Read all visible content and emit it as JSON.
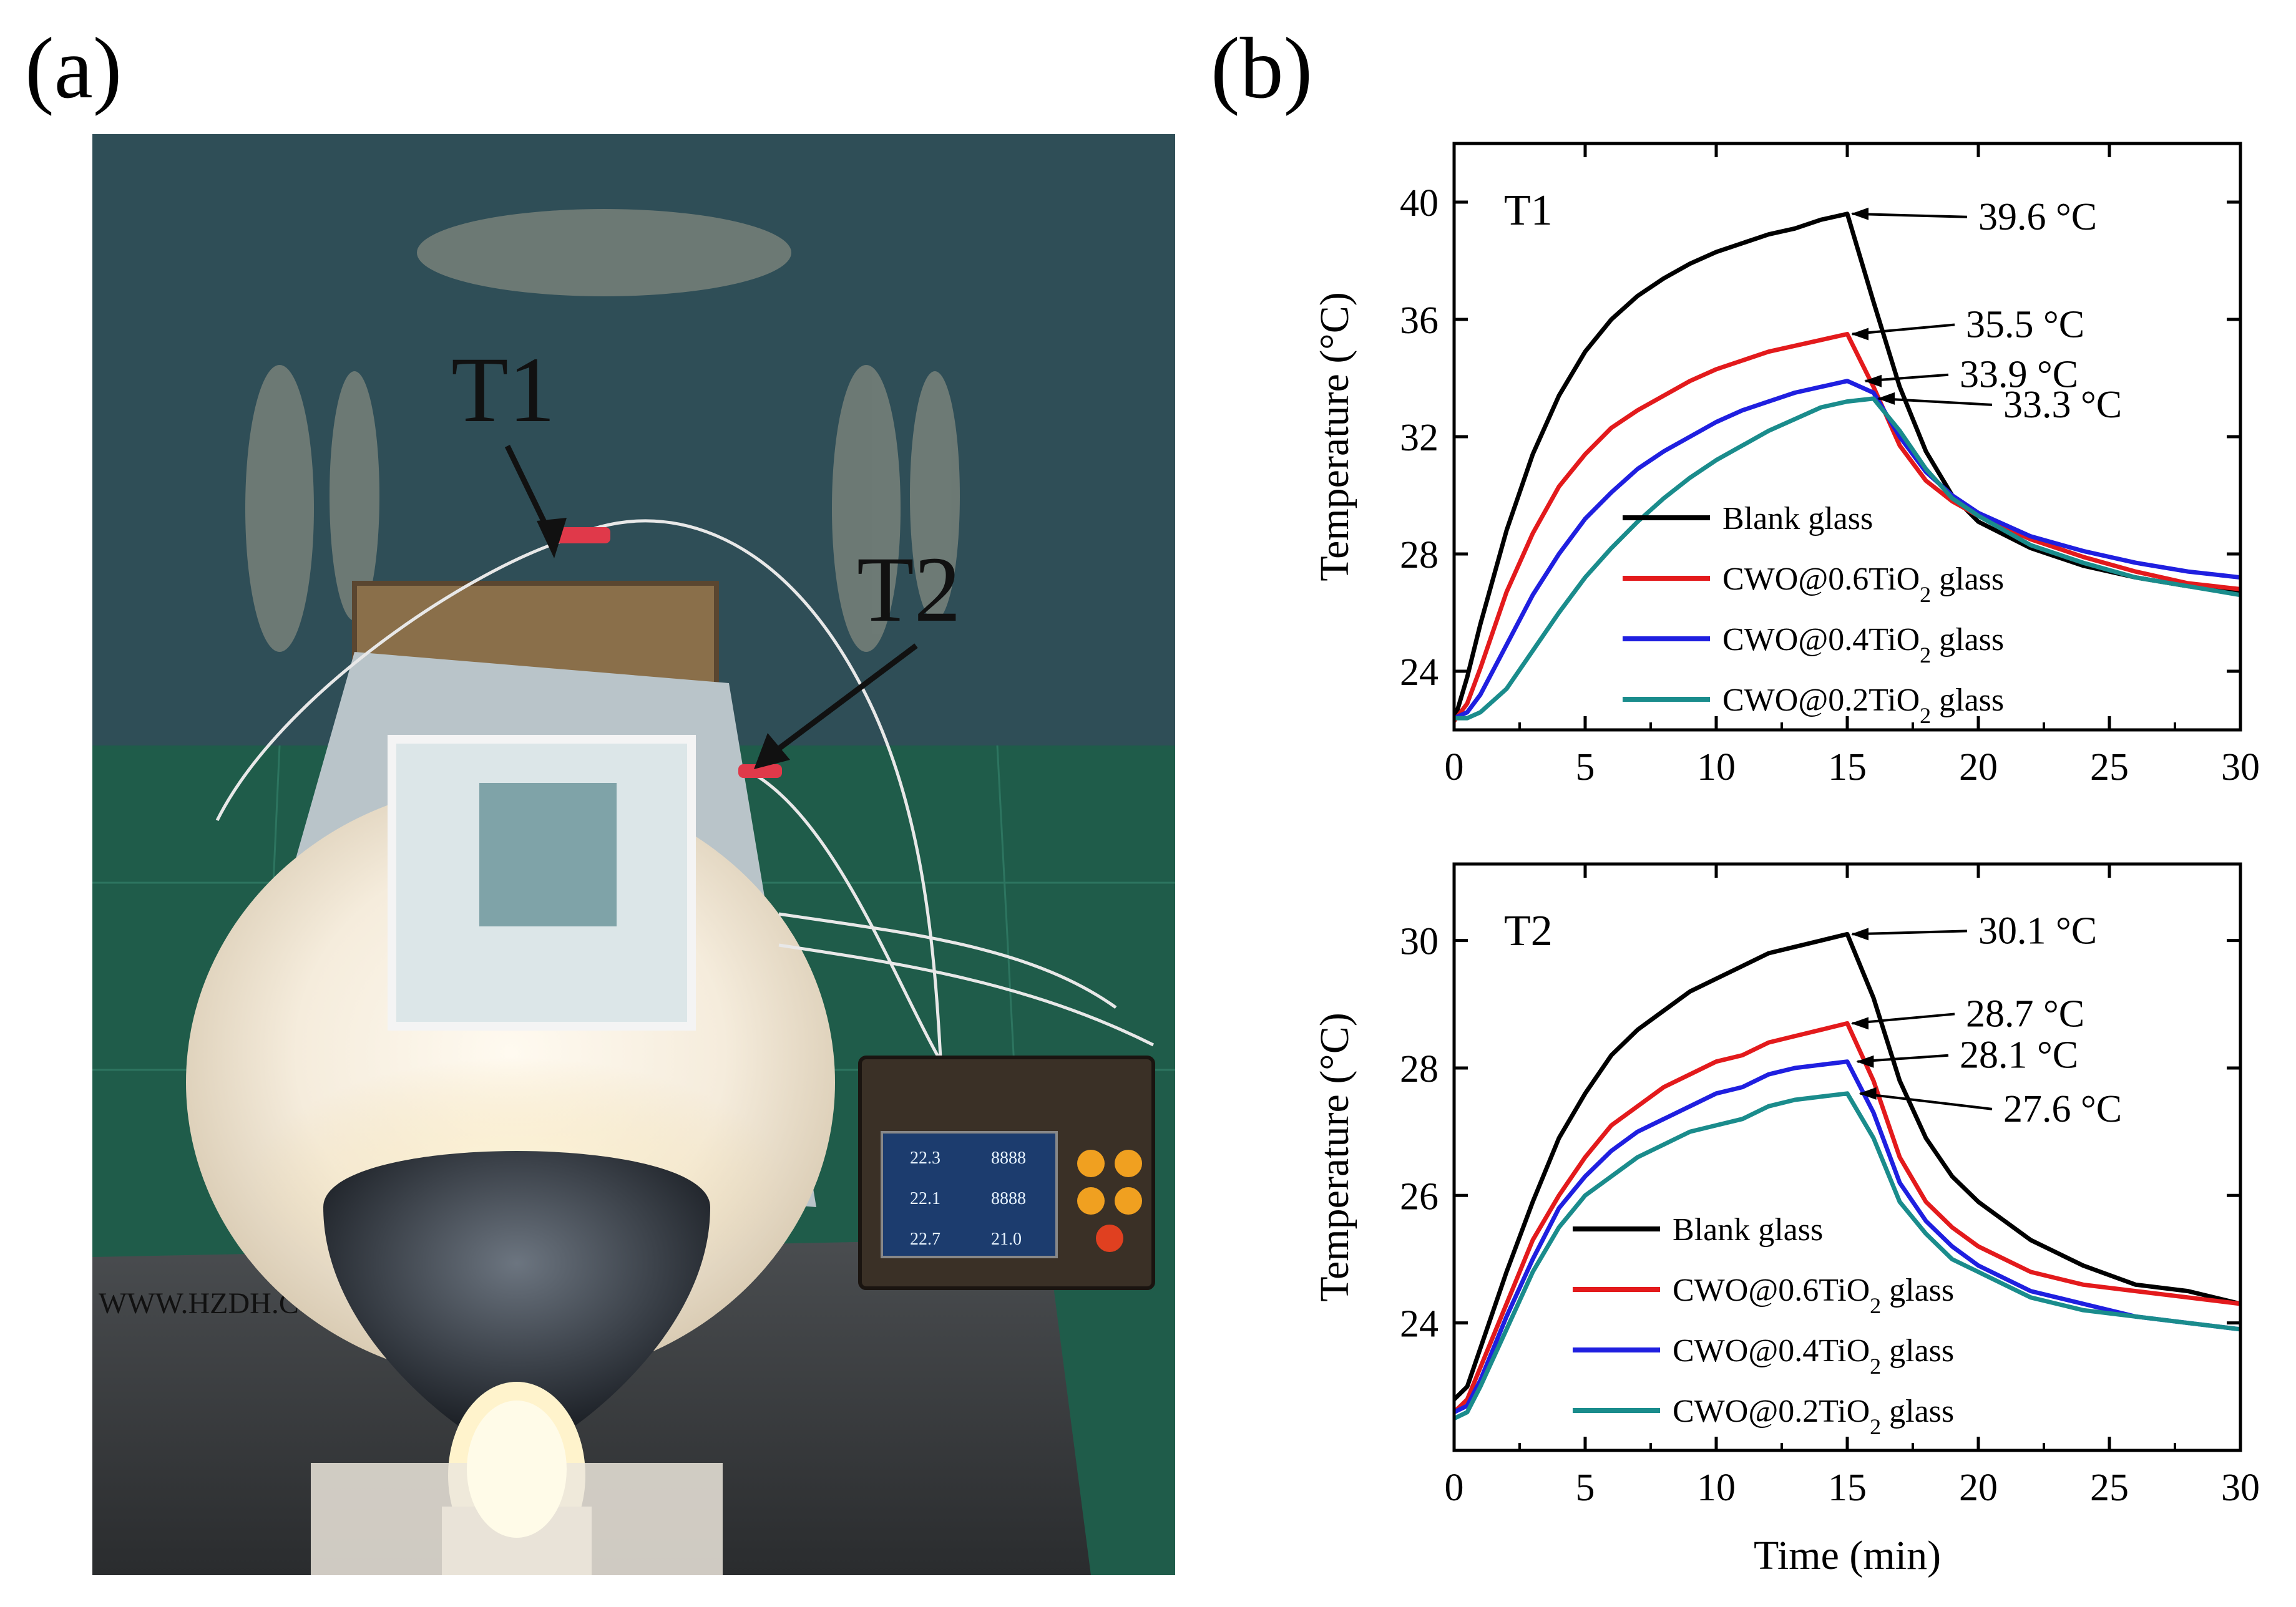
{
  "panels": {
    "a_label": "(a)",
    "b_label": "(b)"
  },
  "photo": {
    "sensor_labels": [
      "T1",
      "T2"
    ],
    "logger_readings": [
      "22.3",
      "8888",
      "22.1",
      "8888",
      "22.7",
      "21.0"
    ],
    "board_text": "WWW.HZDH.COM",
    "colors": {
      "wall": "#2f4e57",
      "table": "#1f5c4a",
      "cylinder": "#f4ece0",
      "wire": "#e8e8e8",
      "sensor_tape": "#e0394a"
    }
  },
  "chart_data": [
    {
      "type": "line",
      "panel_tag": "T1",
      "xlabel": "",
      "ylabel": "Temperature (°C)",
      "xlim": [
        0,
        30
      ],
      "ylim": [
        22,
        42
      ],
      "xticks": [
        0,
        5,
        10,
        15,
        20,
        25,
        30
      ],
      "yticks": [
        24,
        28,
        32,
        36,
        40
      ],
      "grid": false,
      "legend_position": "lower-right",
      "series": [
        {
          "name": "Blank glass",
          "color": "#000000",
          "x": [
            0,
            0.5,
            1,
            2,
            3,
            4,
            5,
            6,
            7,
            8,
            9,
            10,
            11,
            12,
            13,
            14,
            15,
            16,
            17,
            18,
            19,
            20,
            22,
            24,
            26,
            28,
            30
          ],
          "y": [
            22.3,
            23.8,
            25.6,
            28.8,
            31.4,
            33.4,
            34.9,
            36.0,
            36.8,
            37.4,
            37.9,
            38.3,
            38.6,
            38.9,
            39.1,
            39.4,
            39.6,
            36.6,
            33.7,
            31.5,
            30.0,
            29.1,
            28.2,
            27.6,
            27.2,
            26.9,
            26.7
          ]
        },
        {
          "name": "CWO@0.6TiO2 glass",
          "color": "#e31a1c",
          "x": [
            0,
            0.5,
            1,
            2,
            3,
            4,
            5,
            6,
            7,
            8,
            9,
            10,
            11,
            12,
            13,
            14,
            15,
            16,
            17,
            18,
            19,
            20,
            22,
            24,
            26,
            28,
            30
          ],
          "y": [
            22.3,
            22.9,
            24.1,
            26.7,
            28.7,
            30.3,
            31.4,
            32.3,
            32.9,
            33.4,
            33.9,
            34.3,
            34.6,
            34.9,
            35.1,
            35.3,
            35.5,
            33.7,
            31.7,
            30.5,
            29.8,
            29.3,
            28.5,
            27.9,
            27.4,
            27.0,
            26.8
          ]
        },
        {
          "name": "CWO@0.4TiO2 glass",
          "color": "#1f1fe0",
          "x": [
            0,
            0.5,
            1,
            2,
            3,
            4,
            5,
            6,
            7,
            8,
            9,
            10,
            11,
            12,
            13,
            14,
            15,
            16,
            17,
            18,
            19,
            20,
            22,
            24,
            26,
            28,
            30
          ],
          "y": [
            22.4,
            22.6,
            23.2,
            24.9,
            26.6,
            28.0,
            29.2,
            30.1,
            30.9,
            31.5,
            32.0,
            32.5,
            32.9,
            33.2,
            33.5,
            33.7,
            33.9,
            33.5,
            32.0,
            30.8,
            30.0,
            29.4,
            28.6,
            28.1,
            27.7,
            27.4,
            27.2
          ]
        },
        {
          "name": "CWO@0.2TiO2 glass",
          "color": "#1a8c8c",
          "x": [
            0,
            0.5,
            1,
            2,
            3,
            4,
            5,
            6,
            7,
            8,
            9,
            10,
            11,
            12,
            13,
            14,
            15,
            16,
            17,
            18,
            19,
            20,
            22,
            24,
            26,
            28,
            30
          ],
          "y": [
            22.4,
            22.4,
            22.6,
            23.4,
            24.7,
            26.0,
            27.2,
            28.2,
            29.1,
            29.9,
            30.6,
            31.2,
            31.7,
            32.2,
            32.6,
            33.0,
            33.2,
            33.3,
            32.2,
            30.9,
            29.9,
            29.3,
            28.3,
            27.7,
            27.2,
            26.9,
            26.6
          ]
        }
      ],
      "annotations": [
        {
          "text": "39.6 °C",
          "x": 15,
          "y": 39.6
        },
        {
          "text": "35.5 °C",
          "x": 15,
          "y": 35.5
        },
        {
          "text": "33.9 °C",
          "x": 15.5,
          "y": 33.9
        },
        {
          "text": "33.3 °C",
          "x": 16,
          "y": 33.3
        }
      ]
    },
    {
      "type": "line",
      "panel_tag": "T2",
      "xlabel": "Time (min)",
      "ylabel": "Temperature (°C)",
      "xlim": [
        0,
        30
      ],
      "ylim": [
        22,
        31.2
      ],
      "xticks": [
        0,
        5,
        10,
        15,
        20,
        25,
        30
      ],
      "yticks": [
        24,
        26,
        28,
        30
      ],
      "grid": false,
      "legend_position": "lower-left",
      "series": [
        {
          "name": "Blank glass",
          "color": "#000000",
          "x": [
            0,
            0.5,
            1,
            2,
            3,
            4,
            5,
            6,
            7,
            8,
            9,
            10,
            11,
            12,
            13,
            14,
            15,
            16,
            17,
            18,
            19,
            20,
            22,
            24,
            26,
            28,
            30
          ],
          "y": [
            22.8,
            23.0,
            23.6,
            24.8,
            25.9,
            26.9,
            27.6,
            28.2,
            28.6,
            28.9,
            29.2,
            29.4,
            29.6,
            29.8,
            29.9,
            30.0,
            30.1,
            29.1,
            27.8,
            26.9,
            26.3,
            25.9,
            25.3,
            24.9,
            24.6,
            24.5,
            24.3
          ]
        },
        {
          "name": "CWO@0.6TiO2 glass",
          "color": "#e31a1c",
          "x": [
            0,
            0.5,
            1,
            2,
            3,
            4,
            5,
            6,
            7,
            8,
            9,
            10,
            11,
            12,
            13,
            14,
            15,
            16,
            17,
            18,
            19,
            20,
            22,
            24,
            26,
            28,
            30
          ],
          "y": [
            22.6,
            22.8,
            23.3,
            24.3,
            25.3,
            26.0,
            26.6,
            27.1,
            27.4,
            27.7,
            27.9,
            28.1,
            28.2,
            28.4,
            28.5,
            28.6,
            28.7,
            27.8,
            26.6,
            25.9,
            25.5,
            25.2,
            24.8,
            24.6,
            24.5,
            24.4,
            24.3
          ]
        },
        {
          "name": "CWO@0.4TiO2 glass",
          "color": "#1f1fe0",
          "x": [
            0,
            0.5,
            1,
            2,
            3,
            4,
            5,
            6,
            7,
            8,
            9,
            10,
            11,
            12,
            13,
            14,
            15,
            16,
            17,
            18,
            19,
            20,
            22,
            24,
            26,
            28,
            30
          ],
          "y": [
            22.6,
            22.7,
            23.1,
            24.1,
            25.0,
            25.8,
            26.3,
            26.7,
            27.0,
            27.2,
            27.4,
            27.6,
            27.7,
            27.9,
            28.0,
            28.05,
            28.1,
            27.3,
            26.2,
            25.6,
            25.2,
            24.9,
            24.5,
            24.3,
            24.1,
            24.0,
            23.9
          ]
        },
        {
          "name": "CWO@0.2TiO2 glass",
          "color": "#1a8c8c",
          "x": [
            0,
            0.5,
            1,
            2,
            3,
            4,
            5,
            6,
            7,
            8,
            9,
            10,
            11,
            12,
            13,
            14,
            15,
            16,
            17,
            18,
            19,
            20,
            22,
            24,
            26,
            28,
            30
          ],
          "y": [
            22.5,
            22.6,
            23.0,
            23.9,
            24.8,
            25.5,
            26.0,
            26.3,
            26.6,
            26.8,
            27.0,
            27.1,
            27.2,
            27.4,
            27.5,
            27.55,
            27.6,
            26.9,
            25.9,
            25.4,
            25.0,
            24.8,
            24.4,
            24.2,
            24.1,
            24.0,
            23.9
          ]
        }
      ],
      "annotations": [
        {
          "text": "30.1 °C",
          "x": 15,
          "y": 30.1
        },
        {
          "text": "28.7 °C",
          "x": 15,
          "y": 28.7
        },
        {
          "text": "28.1 °C",
          "x": 15.2,
          "y": 28.1
        },
        {
          "text": "27.6 °C",
          "x": 15.3,
          "y": 27.6
        }
      ]
    }
  ]
}
